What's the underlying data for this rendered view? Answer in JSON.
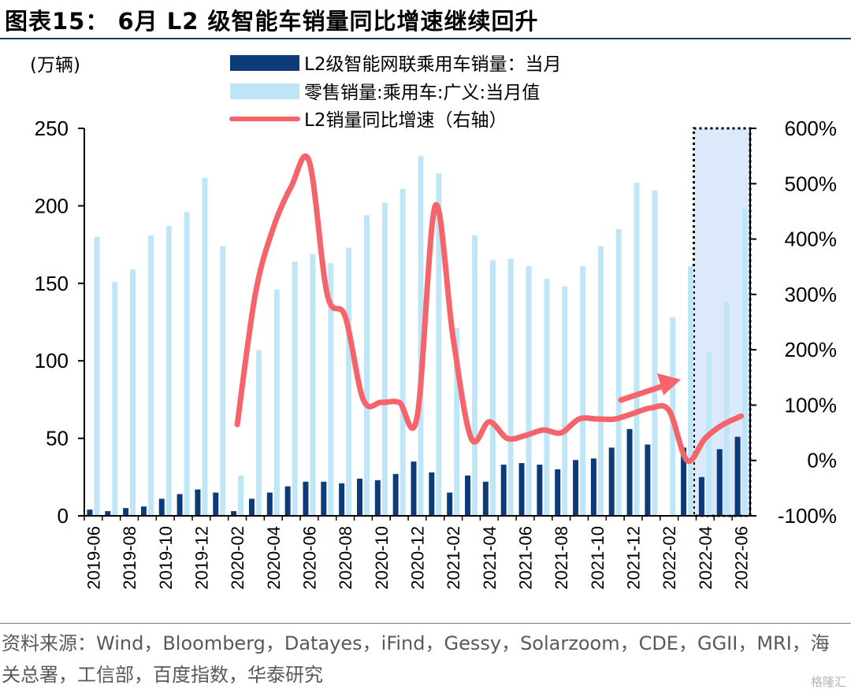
{
  "header": {
    "title": "图表15： 6月 L2 级智能车销量同比增速继续回升"
  },
  "footer": {
    "source": "资料来源：Wind，Bloomberg，Datayes，iFind，Gessy，Solarzoom，CDE，GGII，MRI，海关总署，工信部，百度指数，华泰研究",
    "watermark": "格隆汇"
  },
  "chart_data": {
    "type": "bar",
    "left_unit": "(万辆)",
    "categories": [
      "2019-06",
      "2019-07",
      "2019-08",
      "2019-09",
      "2019-10",
      "2019-11",
      "2019-12",
      "2020-01",
      "2020-02",
      "2020-03",
      "2020-04",
      "2020-05",
      "2020-06",
      "2020-07",
      "2020-08",
      "2020-09",
      "2020-10",
      "2020-11",
      "2020-12",
      "2021-01",
      "2021-02",
      "2021-03",
      "2021-04",
      "2021-05",
      "2021-06",
      "2021-07",
      "2021-08",
      "2021-09",
      "2021-10",
      "2021-11",
      "2021-12",
      "2022-01",
      "2022-02",
      "2022-03",
      "2022-04",
      "2022-05",
      "2022-06"
    ],
    "x_tick_labels": [
      "2019-06",
      "2019-08",
      "2019-10",
      "2019-12",
      "2020-02",
      "2020-04",
      "2020-06",
      "2020-08",
      "2020-10",
      "2020-12",
      "2021-02",
      "2021-04",
      "2021-06",
      "2021-08",
      "2021-10",
      "2021-12",
      "2022-02",
      "2022-04",
      "2022-06"
    ],
    "ylim": [
      0,
      250
    ],
    "yticks": [
      0,
      50,
      100,
      150,
      200,
      250
    ],
    "y2lim": [
      -100,
      600
    ],
    "y2ticks": [
      "-100%",
      "0%",
      "100%",
      "200%",
      "300%",
      "400%",
      "500%",
      "600%"
    ],
    "y2tick_values": [
      -100,
      0,
      100,
      200,
      300,
      400,
      500,
      600
    ],
    "series": [
      {
        "name": "L2级智能网联乘用车销量：当月",
        "kind": "bar",
        "color": "#0d3b7a",
        "values": [
          4,
          3,
          5,
          6,
          11,
          14,
          17,
          15,
          3,
          11,
          15,
          19,
          22,
          22,
          21,
          24,
          23,
          27,
          35,
          28,
          15,
          26,
          22,
          33,
          34,
          33,
          30,
          36,
          37,
          44,
          56,
          46,
          null,
          44,
          25,
          43,
          51
        ]
      },
      {
        "name": "零售销量:乘用车:广义:当月值",
        "kind": "bar",
        "color": "#bfe6f7",
        "values": [
          180,
          151,
          159,
          181,
          187,
          196,
          218,
          174,
          26,
          107,
          146,
          164,
          169,
          163,
          173,
          194,
          202,
          211,
          232,
          221,
          121,
          181,
          165,
          166,
          161,
          153,
          148,
          161,
          174,
          185,
          215,
          210,
          128,
          161,
          106,
          138,
          198
        ]
      },
      {
        "name": "L2销量同比增速（右轴）",
        "kind": "line",
        "axis": "right",
        "color": "#f4646a",
        "values": [
          null,
          null,
          null,
          null,
          null,
          null,
          null,
          null,
          65,
          300,
          420,
          495,
          540,
          300,
          260,
          110,
          105,
          105,
          80,
          460,
          220,
          40,
          70,
          40,
          45,
          55,
          50,
          75,
          75,
          75,
          85,
          95,
          90,
          0,
          40,
          65,
          80
        ]
      }
    ],
    "annotation": {
      "type": "arrow",
      "color": "#f4646a"
    },
    "highlight": {
      "from": "2022-04",
      "to": "2022-06",
      "fill": "#dce9fb",
      "border": "dotted"
    }
  }
}
